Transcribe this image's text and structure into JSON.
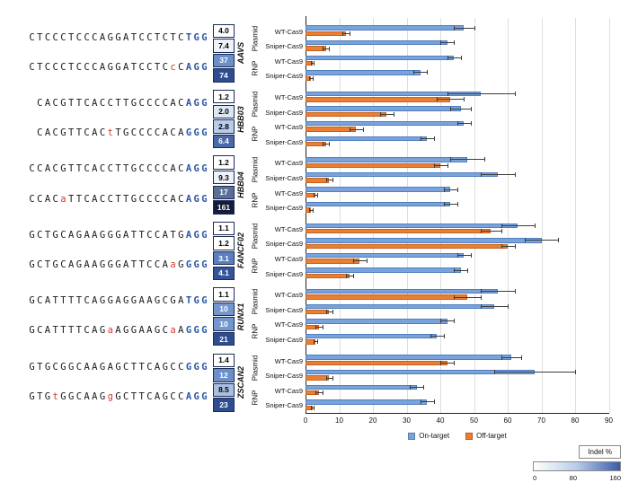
{
  "legend": {
    "on_label": "On-target",
    "off_label": "Off-target"
  },
  "colorbar": {
    "title": "Indel %",
    "ticks": [
      "0",
      "80",
      "160"
    ],
    "gradient": [
      "#ffffff",
      "#b9cce9",
      "#3a5ca8"
    ]
  },
  "axis": {
    "ticks": [
      0,
      10,
      20,
      30,
      40,
      50,
      60,
      70,
      80,
      90
    ],
    "xlim": [
      0,
      90
    ]
  },
  "colors": {
    "on": "#7ba3db",
    "on_border": "#4f7fbd",
    "off": "#ed7d31",
    "off_border": "#c2641f",
    "pam": "#2b55a8",
    "mismatch": "#d43a2f",
    "grid": "#dedede",
    "axis": "#222222"
  },
  "chart_data": {
    "type": "bar",
    "orientation": "horizontal",
    "xlim": [
      0,
      90
    ],
    "legend": [
      "On-target",
      "Off-target"
    ],
    "groups": [
      {
        "gene": "AAVS",
        "sequences": [
          {
            "name": "on-target",
            "segments": [
              {
                "t": "CTCCCTCCCAGGATCCTCTC",
                "c": "base"
              },
              {
                "t": "TGG",
                "c": "pam"
              }
            ]
          },
          {
            "name": "off-target",
            "segments": [
              {
                "t": "CTCCCTCCCAGGATCCTC",
                "c": "base"
              },
              {
                "t": "c",
                "c": "mm"
              },
              {
                "t": "C",
                "c": "base"
              },
              {
                "t": "AGG",
                "c": "pam"
              }
            ]
          }
        ],
        "rows": [
          {
            "delivery": "Plasmid",
            "cas": "WT-Cas9",
            "ratio": "4.0",
            "box_bg": "#ffffff",
            "box_fg": "#000000",
            "on": 47,
            "on_err": 3,
            "off": 12,
            "off_err": 1
          },
          {
            "delivery": "Plasmid",
            "cas": "Sniper-Cas9",
            "ratio": "7.4",
            "box_bg": "#eef3fa",
            "box_fg": "#000000",
            "on": 42,
            "on_err": 2,
            "off": 6,
            "off_err": 1
          },
          {
            "delivery": "RNP",
            "cas": "WT-Cas9",
            "ratio": "37",
            "box_bg": "#6b8fc9",
            "box_fg": "#ffffff",
            "on": 44,
            "on_err": 2,
            "off": 2,
            "off_err": 0.5
          },
          {
            "delivery": "RNP",
            "cas": "Sniper-Cas9",
            "ratio": "74",
            "box_bg": "#2e4d8f",
            "box_fg": "#ffffff",
            "on": 34,
            "on_err": 2,
            "off": 1.5,
            "off_err": 0.5
          }
        ]
      },
      {
        "gene": "HBB03",
        "sequences": [
          {
            "name": "on-target",
            "segments": [
              {
                "t": "CACGTTCACCTTGCCCCAC",
                "c": "base"
              },
              {
                "t": "AGG",
                "c": "pam"
              }
            ]
          },
          {
            "name": "off-target",
            "segments": [
              {
                "t": "CACGTTCAC",
                "c": "base"
              },
              {
                "t": "t",
                "c": "mm"
              },
              {
                "t": "TGCCCCACA",
                "c": "base"
              },
              {
                "t": "GGG",
                "c": "pam"
              }
            ]
          }
        ],
        "rows": [
          {
            "delivery": "Plasmid",
            "cas": "WT-Cas9",
            "ratio": "1.2",
            "box_bg": "#ffffff",
            "box_fg": "#000000",
            "on": 52,
            "on_err": 10,
            "off": 43,
            "off_err": 4
          },
          {
            "delivery": "Plasmid",
            "cas": "Sniper-Cas9",
            "ratio": "2.0",
            "box_bg": "#dde7f4",
            "box_fg": "#000000",
            "on": 46,
            "on_err": 3,
            "off": 24,
            "off_err": 2
          },
          {
            "delivery": "RNP",
            "cas": "WT-Cas9",
            "ratio": "2.8",
            "box_bg": "#b9cce9",
            "box_fg": "#000000",
            "on": 47,
            "on_err": 2,
            "off": 15,
            "off_err": 2
          },
          {
            "delivery": "RNP",
            "cas": "Sniper-Cas9",
            "ratio": "6.4",
            "box_bg": "#4a69a8",
            "box_fg": "#ffffff",
            "on": 36,
            "on_err": 2,
            "off": 6,
            "off_err": 1
          }
        ]
      },
      {
        "gene": "HBB04",
        "sequences": [
          {
            "name": "on-target",
            "segments": [
              {
                "t": "CCACGTTCACCTTGCCCCAC",
                "c": "base"
              },
              {
                "t": "AGG",
                "c": "pam"
              }
            ]
          },
          {
            "name": "off-target",
            "segments": [
              {
                "t": "CCAC",
                "c": "base"
              },
              {
                "t": "a",
                "c": "mm"
              },
              {
                "t": "TTCACCTTGCCCCAC",
                "c": "base"
              },
              {
                "t": "AGG",
                "c": "pam"
              }
            ]
          }
        ],
        "rows": [
          {
            "delivery": "Plasmid",
            "cas": "WT-Cas9",
            "ratio": "1.2",
            "box_bg": "#ffffff",
            "box_fg": "#000000",
            "on": 48,
            "on_err": 5,
            "off": 40,
            "off_err": 2
          },
          {
            "delivery": "Plasmid",
            "cas": "Sniper-Cas9",
            "ratio": "9.3",
            "box_bg": "#eef3fa",
            "box_fg": "#000000",
            "on": 57,
            "on_err": 5,
            "off": 7,
            "off_err": 1
          },
          {
            "delivery": "RNP",
            "cas": "WT-Cas9",
            "ratio": "17",
            "box_bg": "#5a6e96",
            "box_fg": "#ffffff",
            "on": 43,
            "on_err": 2,
            "off": 3,
            "off_err": 0.5
          },
          {
            "delivery": "RNP",
            "cas": "Sniper-Cas9",
            "ratio": "161",
            "box_bg": "#131c38",
            "box_fg": "#ffffff",
            "on": 43,
            "on_err": 2,
            "off": 1.5,
            "off_err": 0.5
          }
        ]
      },
      {
        "gene": "FANCF02",
        "sequences": [
          {
            "name": "on-target",
            "segments": [
              {
                "t": "GCTGCAGAAGGGATTCCATG",
                "c": "base"
              },
              {
                "t": "AGG",
                "c": "pam"
              }
            ]
          },
          {
            "name": "off-target",
            "segments": [
              {
                "t": "GCTGCAGAAGGGATTCCA",
                "c": "base"
              },
              {
                "t": "a",
                "c": "mm"
              },
              {
                "t": "G",
                "c": "base"
              },
              {
                "t": "GGG",
                "c": "pam"
              }
            ]
          }
        ],
        "rows": [
          {
            "delivery": "Plasmid",
            "cas": "WT-Cas9",
            "ratio": "1.1",
            "box_bg": "#ffffff",
            "box_fg": "#000000",
            "on": 63,
            "on_err": 5,
            "off": 55,
            "off_err": 3
          },
          {
            "delivery": "Plasmid",
            "cas": "Sniper-Cas9",
            "ratio": "1.2",
            "box_bg": "#ffffff",
            "box_fg": "#000000",
            "on": 70,
            "on_err": 5,
            "off": 60,
            "off_err": 2
          },
          {
            "delivery": "RNP",
            "cas": "WT-Cas9",
            "ratio": "3.1",
            "box_bg": "#5b7fbe",
            "box_fg": "#ffffff",
            "on": 47,
            "on_err": 2,
            "off": 16,
            "off_err": 2
          },
          {
            "delivery": "RNP",
            "cas": "Sniper-Cas9",
            "ratio": "4.1",
            "box_bg": "#33549b",
            "box_fg": "#ffffff",
            "on": 46,
            "on_err": 2,
            "off": 13,
            "off_err": 1
          }
        ]
      },
      {
        "gene": "RUNX1",
        "sequences": [
          {
            "name": "on-target",
            "segments": [
              {
                "t": "GCATTTTCAGGAGGAAGCGA",
                "c": "base"
              },
              {
                "t": "TGG",
                "c": "pam"
              }
            ]
          },
          {
            "name": "off-target",
            "segments": [
              {
                "t": "GCATTTTCAG",
                "c": "base"
              },
              {
                "t": "a",
                "c": "mm"
              },
              {
                "t": "AGGAAGC",
                "c": "base"
              },
              {
                "t": "a",
                "c": "mm"
              },
              {
                "t": "A",
                "c": "base"
              },
              {
                "t": "GGG",
                "c": "pam"
              }
            ]
          }
        ],
        "rows": [
          {
            "delivery": "Plasmid",
            "cas": "WT-Cas9",
            "ratio": "1.1",
            "box_bg": "#ffffff",
            "box_fg": "#000000",
            "on": 57,
            "on_err": 5,
            "off": 48,
            "off_err": 4
          },
          {
            "delivery": "Plasmid",
            "cas": "Sniper-Cas9",
            "ratio": "10",
            "box_bg": "#7396cf",
            "box_fg": "#ffffff",
            "on": 56,
            "on_err": 4,
            "off": 7,
            "off_err": 1
          },
          {
            "delivery": "RNP",
            "cas": "WT-Cas9",
            "ratio": "10",
            "box_bg": "#7396cf",
            "box_fg": "#ffffff",
            "on": 42,
            "on_err": 2,
            "off": 4,
            "off_err": 1
          },
          {
            "delivery": "RNP",
            "cas": "Sniper-Cas9",
            "ratio": "21",
            "box_bg": "#2e4d8f",
            "box_fg": "#ffffff",
            "on": 39,
            "on_err": 2,
            "off": 3,
            "off_err": 0.5
          }
        ]
      },
      {
        "gene": "ZSCAN2",
        "sequences": [
          {
            "name": "on-target",
            "segments": [
              {
                "t": "GTGCGGCAAGAGCTTCAGCC",
                "c": "base"
              },
              {
                "t": "GGG",
                "c": "pam"
              }
            ]
          },
          {
            "name": "off-target",
            "segments": [
              {
                "t": "GTG",
                "c": "base"
              },
              {
                "t": "t",
                "c": "mm"
              },
              {
                "t": "GGCAAG",
                "c": "base"
              },
              {
                "t": "g",
                "c": "mm"
              },
              {
                "t": "GCTTCAGCC",
                "c": "base"
              },
              {
                "t": "AGG",
                "c": "pam"
              }
            ]
          }
        ],
        "rows": [
          {
            "delivery": "Plasmid",
            "cas": "WT-Cas9",
            "ratio": "1.4",
            "box_bg": "#ffffff",
            "box_fg": "#000000",
            "on": 61,
            "on_err": 3,
            "off": 42,
            "off_err": 2
          },
          {
            "delivery": "Plasmid",
            "cas": "Sniper-Cas9",
            "ratio": "12",
            "box_bg": "#6b8fc9",
            "box_fg": "#ffffff",
            "on": 68,
            "on_err": 12,
            "off": 7,
            "off_err": 1
          },
          {
            "delivery": "RNP",
            "cas": "WT-Cas9",
            "ratio": "8.5",
            "box_bg": "#a9bfe2",
            "box_fg": "#000000",
            "on": 33,
            "on_err": 2,
            "off": 4,
            "off_err": 1
          },
          {
            "delivery": "RNP",
            "cas": "Sniper-Cas9",
            "ratio": "23",
            "box_bg": "#2e4d8f",
            "box_fg": "#ffffff",
            "on": 36,
            "on_err": 2,
            "off": 2,
            "off_err": 0.5
          }
        ]
      }
    ]
  }
}
